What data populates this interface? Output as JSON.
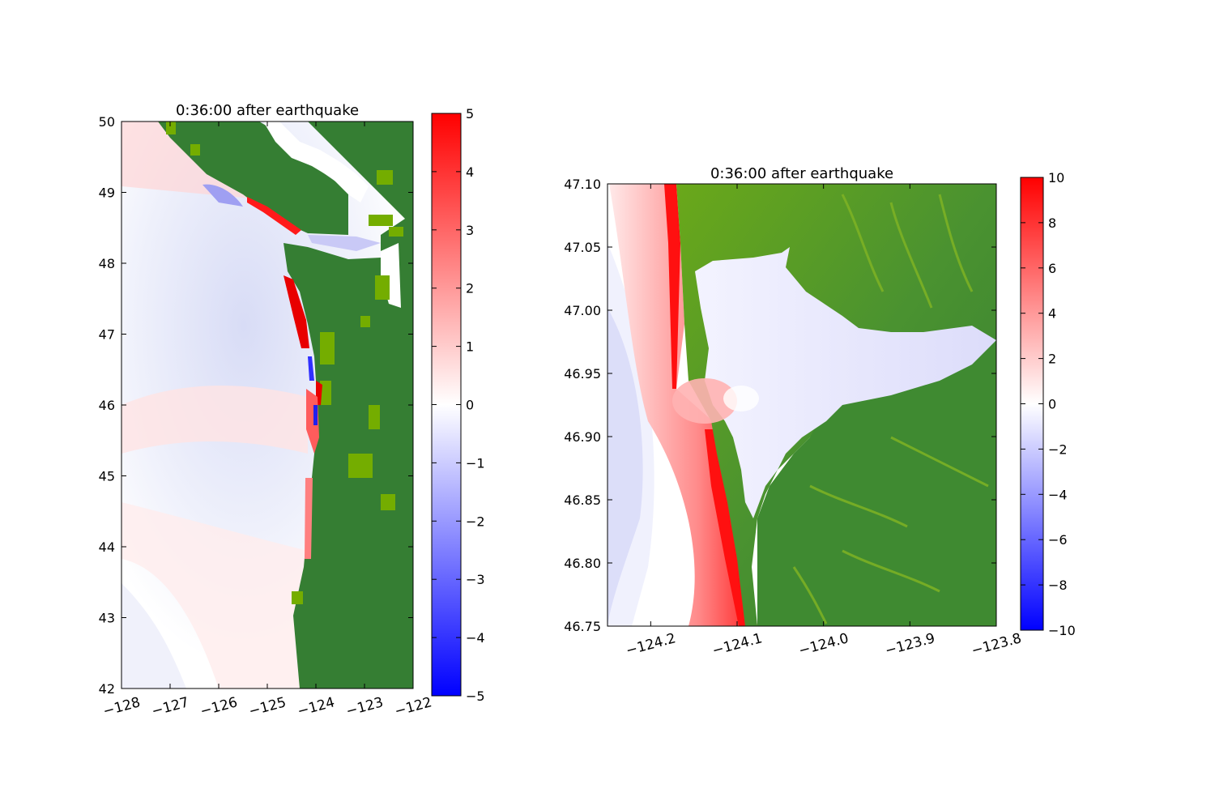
{
  "colors": {
    "land_dark": "#357e33",
    "land_light": "#74ad00",
    "positive": "#ff0000",
    "negative": "#0000ff",
    "zero": "#ffffff"
  },
  "chart_data": [
    {
      "type": "heatmap",
      "title": "0:36:00 after earthquake",
      "xlabel": "",
      "ylabel": "",
      "xlim": [
        -128,
        -122
      ],
      "ylim": [
        42,
        50
      ],
      "x_ticks": [
        "−128",
        "−127",
        "−126",
        "−125",
        "−124",
        "−123",
        "−122"
      ],
      "y_ticks": [
        "42",
        "43",
        "44",
        "45",
        "46",
        "47",
        "48",
        "49",
        "50"
      ],
      "colorbar": {
        "range": [
          -5,
          5
        ],
        "ticks": [
          "−5",
          "−4",
          "−3",
          "−2",
          "−1",
          "0",
          "1",
          "2",
          "3",
          "4",
          "5"
        ]
      }
    },
    {
      "type": "heatmap",
      "title": "0:36:00 after earthquake",
      "xlabel": "",
      "ylabel": "",
      "xlim": [
        -124.25,
        -123.8
      ],
      "ylim": [
        46.75,
        47.1
      ],
      "x_ticks": [
        "−124.2",
        "−124.1",
        "−124.0",
        "−123.9",
        "−123.8"
      ],
      "y_ticks": [
        "46.75",
        "46.80",
        "46.85",
        "46.90",
        "46.95",
        "47.00",
        "47.05",
        "47.10"
      ],
      "colorbar": {
        "range": [
          -10,
          10
        ],
        "ticks": [
          "−10",
          "−8",
          "−6",
          "−4",
          "−2",
          "0",
          "2",
          "4",
          "6",
          "8",
          "10"
        ]
      }
    }
  ]
}
